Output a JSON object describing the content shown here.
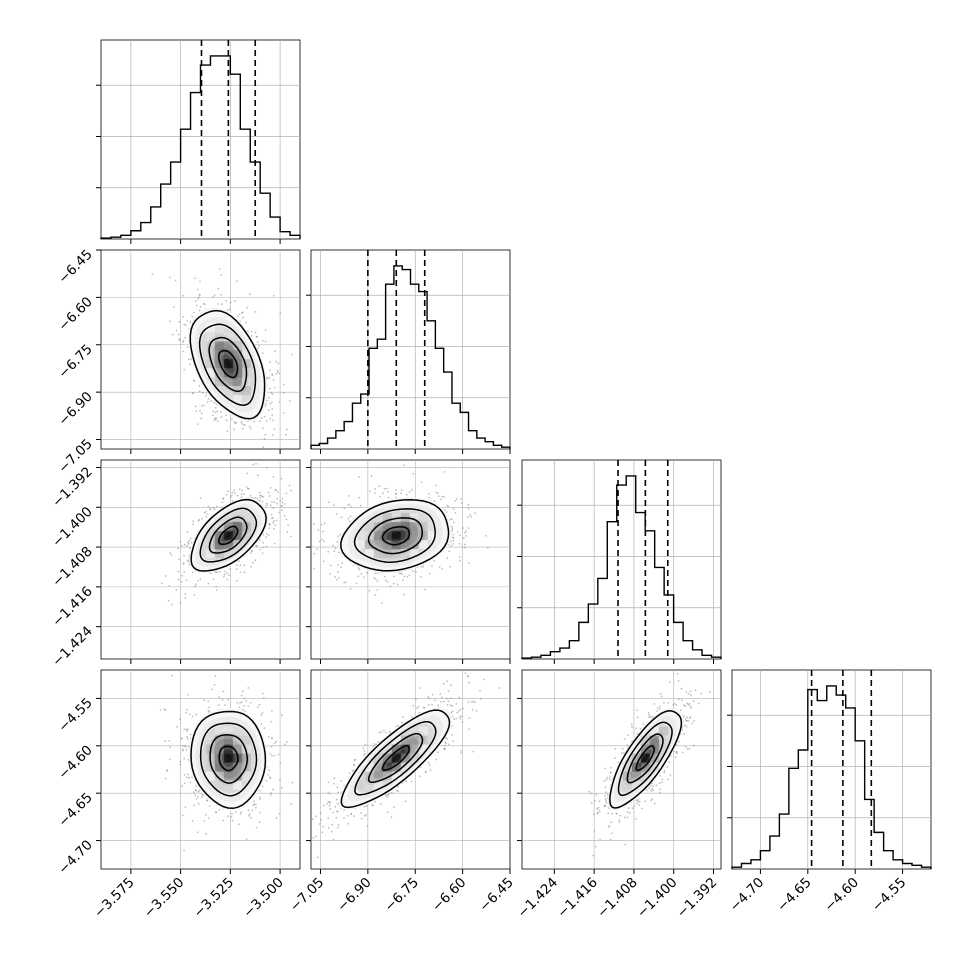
{
  "chart_data": {
    "type": "corner",
    "parameters": [
      {
        "name": "",
        "range": [
          -3.59,
          -3.49
        ],
        "ticks": [
          "−3.575",
          "−3.550",
          "−3.525",
          "−3.500"
        ],
        "tick_values": [
          -3.575,
          -3.55,
          -3.525,
          -3.5
        ],
        "quantiles": [
          -3.5395,
          -3.526,
          -3.5125
        ],
        "hist": [
          0.005,
          0.01,
          0.02,
          0.045,
          0.09,
          0.175,
          0.3,
          0.42,
          0.6,
          0.8,
          0.95,
          1.0,
          1.0,
          0.9,
          0.6,
          0.42,
          0.25,
          0.12,
          0.04,
          0.02
        ]
      },
      {
        "name": "",
        "range": [
          -7.08,
          -6.45
        ],
        "ticks": [
          "−7.05",
          "−6.90",
          "−6.75",
          "−6.60",
          "−6.45"
        ],
        "tick_values": [
          -7.05,
          -6.9,
          -6.75,
          -6.6,
          -6.45
        ],
        "quantiles": [
          -6.9,
          -6.81,
          -6.72
        ],
        "hist": [
          0.02,
          0.03,
          0.06,
          0.1,
          0.15,
          0.25,
          0.3,
          0.55,
          0.6,
          0.9,
          1.0,
          0.98,
          0.9,
          0.86,
          0.7,
          0.55,
          0.42,
          0.25,
          0.2,
          0.1,
          0.06,
          0.04,
          0.02,
          0.01
        ]
      },
      {
        "name": "",
        "range": [
          -1.4305,
          -1.3905
        ],
        "ticks": [
          "−1.424",
          "−1.416",
          "−1.408",
          "−1.400",
          "−1.392"
        ],
        "tick_values": [
          -1.424,
          -1.416,
          -1.408,
          -1.4,
          -1.392
        ],
        "quantiles": [
          -1.4112,
          -1.4057,
          -1.4012
        ],
        "hist": [
          0.005,
          0.01,
          0.02,
          0.04,
          0.06,
          0.1,
          0.2,
          0.3,
          0.44,
          0.75,
          0.95,
          1.0,
          0.8,
          0.7,
          0.5,
          0.35,
          0.2,
          0.1,
          0.05,
          0.02,
          0.01
        ]
      },
      {
        "name": "",
        "range": [
          -4.73,
          -4.52
        ],
        "ticks": [
          "−4.70",
          "−4.65",
          "−4.60",
          "−4.55"
        ],
        "tick_values": [
          -4.7,
          -4.65,
          -4.6,
          -4.55
        ],
        "quantiles": [
          -4.646,
          -4.613,
          -4.583
        ],
        "hist": [
          0.01,
          0.03,
          0.05,
          0.1,
          0.18,
          0.3,
          0.55,
          0.65,
          0.98,
          0.92,
          1.0,
          0.95,
          0.88,
          0.7,
          0.38,
          0.2,
          0.1,
          0.05,
          0.03,
          0.02,
          0.01
        ]
      }
    ],
    "hist_grid_fractions": [
      0.28,
      0.56,
      0.84
    ],
    "pairs": [
      {
        "x": 0,
        "y": 1,
        "mean": [
          -3.526,
          -6.81
        ],
        "sd": [
          0.011,
          0.1
        ],
        "rho": -0.45,
        "seed": 11
      },
      {
        "x": 0,
        "y": 2,
        "mean": [
          -3.526,
          -1.4057
        ],
        "sd": [
          0.011,
          0.0042
        ],
        "rho": 0.55,
        "seed": 23
      },
      {
        "x": 1,
        "y": 2,
        "mean": [
          -6.81,
          -1.4057
        ],
        "sd": [
          0.1,
          0.0042
        ],
        "rho": 0.2,
        "seed": 37
      },
      {
        "x": 0,
        "y": 3,
        "mean": [
          -3.526,
          -4.613
        ],
        "sd": [
          0.011,
          0.03
        ],
        "rho": -0.05,
        "seed": 41
      },
      {
        "x": 1,
        "y": 3,
        "mean": [
          -6.81,
          -4.613
        ],
        "sd": [
          0.1,
          0.03
        ],
        "rho": 0.82,
        "seed": 53
      },
      {
        "x": 2,
        "y": 3,
        "mean": [
          -1.4057,
          -4.613
        ],
        "sd": [
          0.0042,
          0.03
        ],
        "rho": 0.78,
        "seed": 67
      }
    ],
    "contour_sigmas": [
      0.5,
      1.0,
      1.5,
      2.0
    ],
    "grid": true,
    "colors": {
      "line": "#000000",
      "scatter": "#8a8a8a",
      "grid": "#b0b0b0",
      "fill_dark": "#000000",
      "fill_light": "#ffffff"
    }
  }
}
